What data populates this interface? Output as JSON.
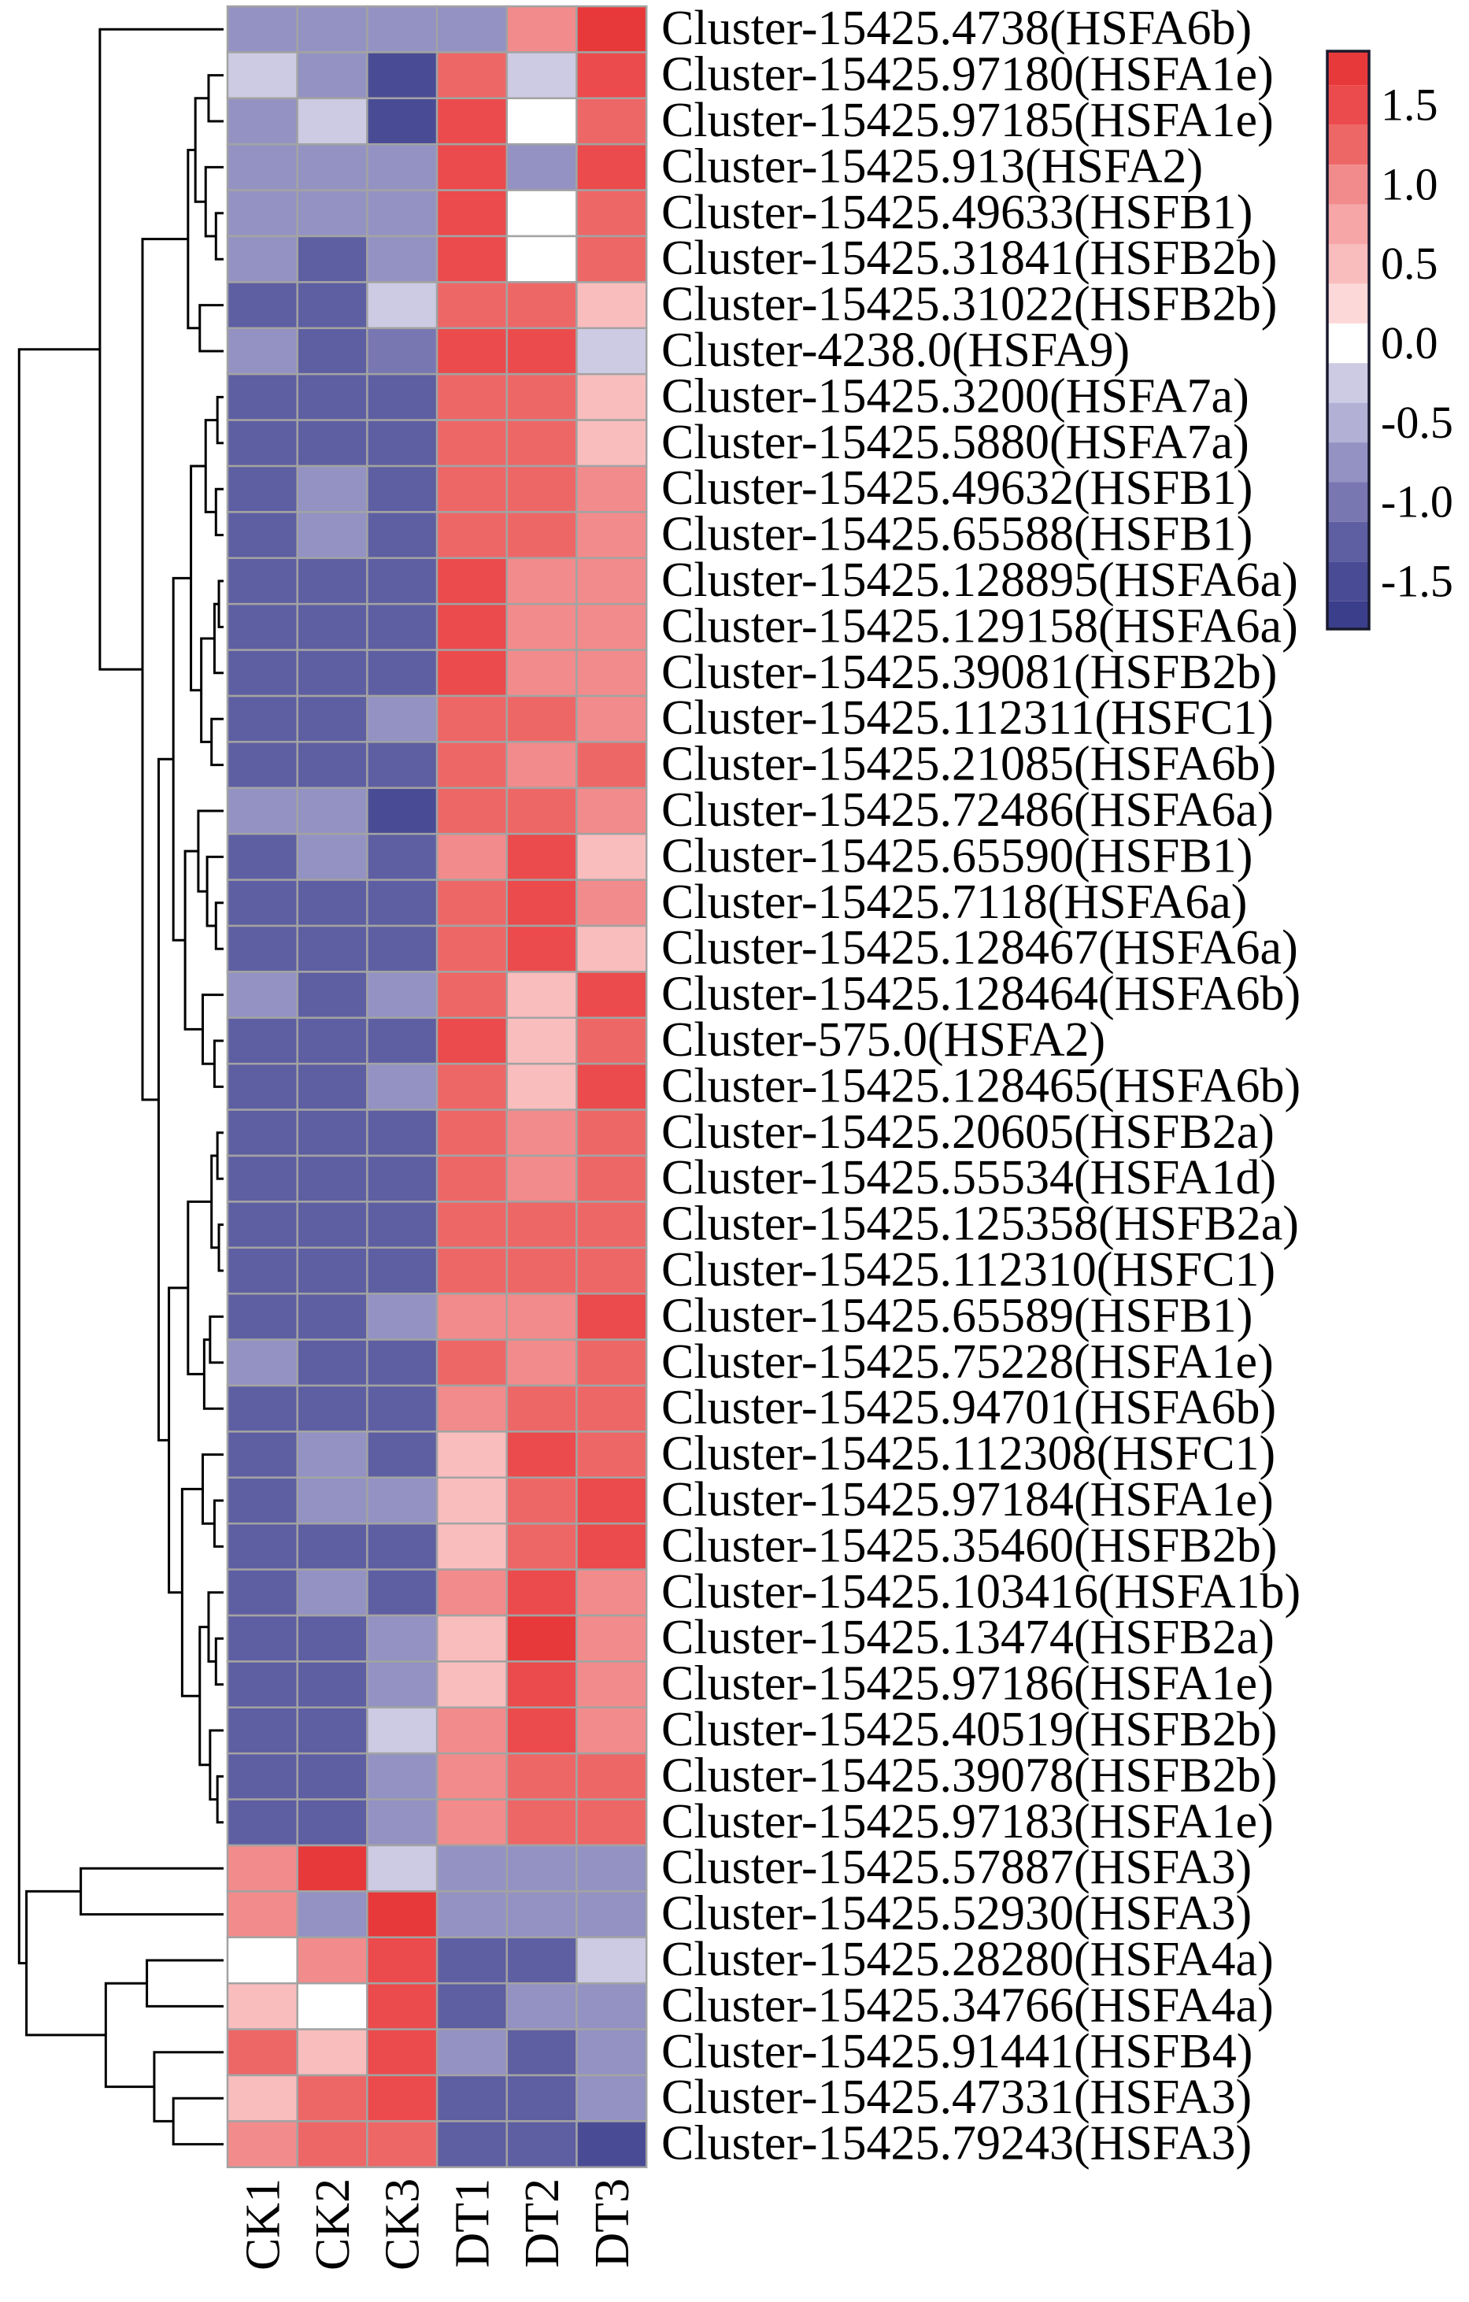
{
  "chart_data": {
    "type": "heatmap",
    "row_dendrogram": true,
    "columns": [
      "CK1",
      "CK2",
      "CK3",
      "DT1",
      "DT2",
      "DT3"
    ],
    "rows": [
      "Cluster-15425.4738(HSFA6b)",
      "Cluster-15425.97180(HSFA1e)",
      "Cluster-15425.97185(HSFA1e)",
      "Cluster-15425.913(HSFA2)",
      "Cluster-15425.49633(HSFB1)",
      "Cluster-15425.31841(HSFB2b)",
      "Cluster-15425.31022(HSFB2b)",
      "Cluster-4238.0(HSFA9)",
      "Cluster-15425.3200(HSFA7a)",
      "Cluster-15425.5880(HSFA7a)",
      "Cluster-15425.49632(HSFB1)",
      "Cluster-15425.65588(HSFB1)",
      "Cluster-15425.128895(HSFA6a)",
      "Cluster-15425.129158(HSFA6a)",
      "Cluster-15425.39081(HSFB2b)",
      "Cluster-15425.112311(HSFC1)",
      "Cluster-15425.21085(HSFA6b)",
      "Cluster-15425.72486(HSFA6a)",
      "Cluster-15425.65590(HSFB1)",
      "Cluster-15425.7118(HSFA6a)",
      "Cluster-15425.128467(HSFA6a)",
      "Cluster-15425.128464(HSFA6b)",
      "Cluster-575.0(HSFA2)",
      "Cluster-15425.128465(HSFA6b)",
      "Cluster-15425.20605(HSFB2a)",
      "Cluster-15425.55534(HSFA1d)",
      "Cluster-15425.125358(HSFB2a)",
      "Cluster-15425.112310(HSFC1)",
      "Cluster-15425.65589(HSFB1)",
      "Cluster-15425.75228(HSFA1e)",
      "Cluster-15425.94701(HSFA6b)",
      "Cluster-15425.112308(HSFC1)",
      "Cluster-15425.97184(HSFA1e)",
      "Cluster-15425.35460(HSFB2b)",
      "Cluster-15425.103416(HSFA1b)",
      "Cluster-15425.13474(HSFB2a)",
      "Cluster-15425.97186(HSFA1e)",
      "Cluster-15425.40519(HSFB2b)",
      "Cluster-15425.39078(HSFB2b)",
      "Cluster-15425.97183(HSFA1e)",
      "Cluster-15425.57887(HSFA3)",
      "Cluster-15425.52930(HSFA3)",
      "Cluster-15425.28280(HSFA4a)",
      "Cluster-15425.34766(HSFA4a)",
      "Cluster-15425.91441(HSFB4)",
      "Cluster-15425.47331(HSFA3)",
      "Cluster-15425.79243(HSFA3)"
    ],
    "values": [
      [
        -0.75,
        -0.75,
        -0.75,
        -0.8,
        0.95,
        1.8
      ],
      [
        -0.35,
        -0.75,
        -1.55,
        1.25,
        -0.3,
        1.55
      ],
      [
        -0.8,
        -0.35,
        -1.55,
        1.5,
        0.0,
        1.25
      ],
      [
        -0.8,
        -0.8,
        -0.85,
        1.5,
        -0.85,
        1.6
      ],
      [
        -0.85,
        -0.8,
        -0.85,
        1.5,
        0.0,
        1.25
      ],
      [
        -0.85,
        -1.3,
        -0.85,
        1.5,
        0.05,
        1.3
      ],
      [
        -1.3,
        -1.3,
        -0.35,
        1.25,
        1.25,
        0.5
      ],
      [
        -0.8,
        -1.3,
        -0.9,
        1.55,
        1.5,
        -0.3
      ],
      [
        -1.3,
        -1.3,
        -1.3,
        1.2,
        1.25,
        0.5
      ],
      [
        -1.3,
        -1.3,
        -1.3,
        1.2,
        1.25,
        0.5
      ],
      [
        -1.3,
        -0.85,
        -1.3,
        1.2,
        1.2,
        0.95
      ],
      [
        -1.3,
        -0.85,
        -1.3,
        1.2,
        1.25,
        0.95
      ],
      [
        -1.3,
        -1.3,
        -1.3,
        1.55,
        0.95,
        0.95
      ],
      [
        -1.3,
        -1.3,
        -1.3,
        1.55,
        0.95,
        0.95
      ],
      [
        -1.3,
        -1.3,
        -1.3,
        1.5,
        0.95,
        0.95
      ],
      [
        -1.3,
        -1.3,
        -0.85,
        1.25,
        1.25,
        0.95
      ],
      [
        -1.3,
        -1.3,
        -1.3,
        1.25,
        0.95,
        1.25
      ],
      [
        -0.8,
        -0.8,
        -1.55,
        1.25,
        1.2,
        1.0
      ],
      [
        -1.3,
        -0.85,
        -1.3,
        0.95,
        1.55,
        0.5
      ],
      [
        -1.3,
        -1.3,
        -1.3,
        1.25,
        1.55,
        0.95
      ],
      [
        -1.3,
        -1.3,
        -1.3,
        1.25,
        1.55,
        0.5
      ],
      [
        -0.8,
        -1.3,
        -0.85,
        1.25,
        0.5,
        1.55
      ],
      [
        -1.3,
        -1.3,
        -1.3,
        1.55,
        0.5,
        1.25
      ],
      [
        -1.3,
        -1.3,
        -0.85,
        1.25,
        0.5,
        1.55
      ],
      [
        -1.3,
        -1.3,
        -1.3,
        1.25,
        0.95,
        1.25
      ],
      [
        -1.3,
        -1.3,
        -1.3,
        1.25,
        0.95,
        1.25
      ],
      [
        -1.3,
        -1.3,
        -1.3,
        1.25,
        1.25,
        1.25
      ],
      [
        -1.3,
        -1.3,
        -1.3,
        1.25,
        1.25,
        1.25
      ],
      [
        -1.3,
        -1.3,
        -0.85,
        0.95,
        0.95,
        1.55
      ],
      [
        -0.8,
        -1.3,
        -1.3,
        1.25,
        0.95,
        1.25
      ],
      [
        -1.3,
        -1.3,
        -1.3,
        0.95,
        1.25,
        1.25
      ],
      [
        -1.3,
        -0.85,
        -1.3,
        0.5,
        1.55,
        1.25
      ],
      [
        -1.3,
        -0.85,
        -0.85,
        0.5,
        1.25,
        1.55
      ],
      [
        -1.3,
        -1.3,
        -1.3,
        0.5,
        1.25,
        1.55
      ],
      [
        -1.3,
        -0.85,
        -1.3,
        0.95,
        1.55,
        0.95
      ],
      [
        -1.3,
        -1.3,
        -0.85,
        0.5,
        1.75,
        0.95
      ],
      [
        -1.3,
        -1.3,
        -0.85,
        0.5,
        1.55,
        0.95
      ],
      [
        -1.3,
        -1.3,
        -0.35,
        0.95,
        1.55,
        0.95
      ],
      [
        -1.3,
        -1.3,
        -0.85,
        0.95,
        1.25,
        1.25
      ],
      [
        -1.3,
        -1.3,
        -0.85,
        0.95,
        1.25,
        1.25
      ],
      [
        0.95,
        1.75,
        -0.35,
        -0.8,
        -0.8,
        -0.8
      ],
      [
        0.95,
        -0.85,
        1.75,
        -0.8,
        -0.8,
        -0.8
      ],
      [
        0.0,
        0.95,
        1.6,
        -1.3,
        -1.3,
        -0.35
      ],
      [
        0.5,
        0.0,
        1.6,
        -1.3,
        -0.85,
        -0.85
      ],
      [
        1.25,
        0.5,
        1.55,
        -0.85,
        -1.3,
        -0.85
      ],
      [
        0.5,
        1.25,
        1.55,
        -1.3,
        -1.3,
        -0.85
      ],
      [
        0.95,
        1.25,
        1.25,
        -1.3,
        -1.3,
        -1.55
      ]
    ],
    "color_scale": {
      "min": -1.8,
      "max": 1.84,
      "ticks": [
        1.5,
        1.0,
        0.5,
        0.0,
        -0.5,
        -1.0,
        -1.5
      ],
      "tick_labels": [
        "1.5",
        "1.0",
        "0.5",
        "0.0",
        "-0.5",
        "-1.0",
        "-1.5"
      ],
      "stops": [
        {
          "value": 1.75,
          "color": "#e8393a"
        },
        {
          "value": 1.5,
          "color": "#eb4b4c"
        },
        {
          "value": 1.25,
          "color": "#ee6767"
        },
        {
          "value": 1.0,
          "color": "#f28b8b"
        },
        {
          "value": 0.75,
          "color": "#f6a6a6"
        },
        {
          "value": 0.5,
          "color": "#f9bdbd"
        },
        {
          "value": 0.25,
          "color": "#fcd8d8"
        },
        {
          "value": 0.0,
          "color": "#ffffff"
        },
        {
          "value": -0.25,
          "color": "#cdcbe3"
        },
        {
          "value": -0.5,
          "color": "#b2b0d5"
        },
        {
          "value": -0.75,
          "color": "#9392c3"
        },
        {
          "value": -1.0,
          "color": "#7877b2"
        },
        {
          "value": -1.25,
          "color": "#5e5ea2"
        },
        {
          "value": -1.5,
          "color": "#4a4b95"
        },
        {
          "value": -1.75,
          "color": "#3b3e8b"
        }
      ]
    }
  }
}
